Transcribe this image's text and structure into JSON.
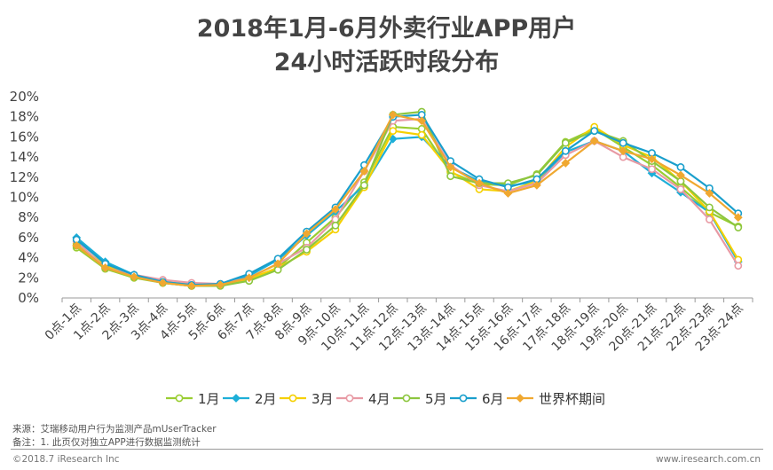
{
  "title": {
    "line1": "2018年1月-6月外卖行业APP用户",
    "line2": "24小时活跃时段分布"
  },
  "chart_data": {
    "type": "line",
    "title": "2018年1月-6月外卖行业APP用户24小时活跃时段分布",
    "xlabel": "",
    "ylabel": "",
    "ylim": [
      0,
      20
    ],
    "y_ticks": [
      "0%",
      "2%",
      "4%",
      "6%",
      "8%",
      "10%",
      "12%",
      "14%",
      "16%",
      "18%",
      "20%"
    ],
    "grid": false,
    "legend_position": "bottom",
    "categories": [
      "0点-1点",
      "1点-2点",
      "2点-3点",
      "3点-4点",
      "4点-5点",
      "5点-6点",
      "6点-7点",
      "7点-8点",
      "8点-9点",
      "9点-10点",
      "10点-11点",
      "11点-12点",
      "12点-13点",
      "13点-14点",
      "14点-15点",
      "15点-16点",
      "16点-17点",
      "17点-18点",
      "18点-19点",
      "19点-20点",
      "20点-21点",
      "21点-22点",
      "22点-23点",
      "23点-24点"
    ],
    "series": [
      {
        "name": "1月",
        "color": "#9ACD32",
        "marker": "circle",
        "values": [
          5.0,
          2.9,
          2.0,
          1.5,
          1.2,
          1.3,
          1.8,
          3.0,
          5.5,
          8.0,
          11.5,
          17.0,
          16.8,
          12.5,
          11.3,
          11.2,
          12.3,
          15.5,
          16.8,
          15.0,
          13.2,
          11.0,
          8.5,
          7.1
        ]
      },
      {
        "name": "2月",
        "color": "#1EAFD8",
        "marker": "diamond",
        "values": [
          6.0,
          3.6,
          2.3,
          1.6,
          1.3,
          1.3,
          2.2,
          3.8,
          6.2,
          8.6,
          11.2,
          15.8,
          16.0,
          13.0,
          11.6,
          11.1,
          11.6,
          14.5,
          15.6,
          14.6,
          12.4,
          10.5,
          8.5,
          3.6
        ]
      },
      {
        "name": "3月",
        "color": "#F5D000",
        "marker": "circle",
        "values": [
          5.4,
          3.2,
          2.2,
          1.6,
          1.3,
          1.3,
          1.9,
          3.0,
          4.6,
          6.8,
          11.0,
          16.6,
          16.2,
          12.6,
          10.8,
          10.6,
          11.6,
          15.0,
          17.0,
          15.2,
          14.0,
          11.6,
          8.6,
          3.8
        ]
      },
      {
        "name": "4月",
        "color": "#E89AA4",
        "marker": "circle",
        "values": [
          5.6,
          3.0,
          2.3,
          1.8,
          1.5,
          1.4,
          2.0,
          3.4,
          5.0,
          7.8,
          12.6,
          17.6,
          17.8,
          13.2,
          11.2,
          10.6,
          11.4,
          14.2,
          15.6,
          14.0,
          12.8,
          10.8,
          7.8,
          3.2
        ]
      },
      {
        "name": "5月",
        "color": "#8DC63F",
        "marker": "circle",
        "values": [
          5.2,
          3.0,
          2.1,
          1.5,
          1.2,
          1.2,
          1.7,
          2.8,
          4.8,
          7.2,
          11.2,
          18.2,
          18.5,
          12.1,
          11.4,
          11.4,
          12.2,
          15.4,
          16.6,
          15.6,
          13.6,
          11.6,
          9.0,
          7.0
        ]
      },
      {
        "name": "6月",
        "color": "#1A9FCC",
        "marker": "circle",
        "values": [
          5.8,
          3.4,
          2.3,
          1.6,
          1.3,
          1.4,
          2.4,
          3.9,
          6.6,
          9.0,
          13.2,
          18.0,
          18.2,
          13.6,
          11.8,
          11.0,
          11.8,
          14.6,
          16.6,
          15.4,
          14.4,
          13.0,
          10.9,
          8.4
        ]
      },
      {
        "name": "世界杯期间",
        "color": "#F0A830",
        "marker": "diamond",
        "values": [
          5.2,
          3.0,
          2.1,
          1.5,
          1.2,
          1.3,
          2.0,
          3.4,
          6.4,
          8.8,
          12.6,
          18.2,
          17.6,
          13.0,
          11.4,
          10.4,
          11.2,
          13.4,
          15.6,
          14.6,
          13.8,
          12.2,
          10.4,
          8.0
        ]
      }
    ]
  },
  "footer": {
    "source": "来源：艾瑞移动用户行为监测产品mUserTracker",
    "note": "备注：1. 此页仅对独立APP进行数据监测统计",
    "copyright": "©2018.7 iResearch Inc",
    "url": "www.iresearch.com.cn"
  }
}
